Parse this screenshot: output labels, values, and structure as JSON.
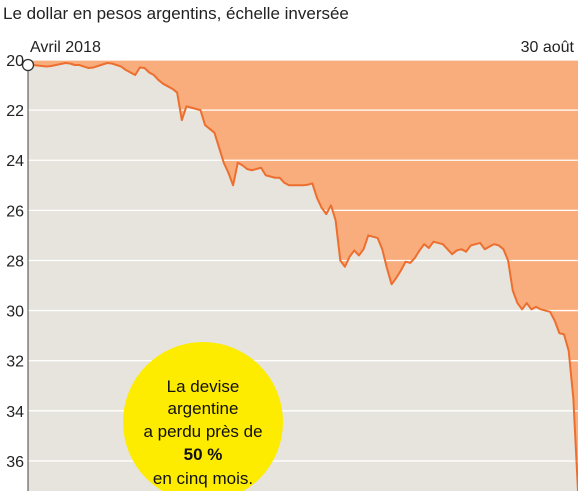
{
  "chart_data": {
    "type": "area",
    "title": "Le dollar en pesos argentins, échelle inversée",
    "y_inverted": true,
    "ylim": [
      20,
      37.2
    ],
    "y_ticks": [
      "20",
      "22",
      "24",
      "26",
      "28",
      "30",
      "32",
      "34",
      "36"
    ],
    "x_range_labels": {
      "start": "Avril 2018",
      "end": "30 août"
    },
    "grid": "horizontal",
    "series": [
      {
        "values": [
          20.2,
          20.2,
          20.22,
          20.24,
          20.26,
          20.24,
          20.2,
          20.16,
          20.12,
          20.14,
          20.2,
          20.2,
          20.26,
          20.32,
          20.3,
          20.24,
          20.18,
          20.12,
          20.14,
          20.2,
          20.26,
          20.4,
          20.5,
          20.6,
          20.3,
          20.32,
          20.5,
          20.6,
          20.8,
          20.95,
          21.05,
          21.15,
          21.3,
          22.4,
          21.85,
          21.9,
          21.95,
          22.0,
          22.6,
          22.75,
          22.9,
          23.5,
          24.1,
          24.5,
          25.0,
          24.1,
          24.2,
          24.35,
          24.4,
          24.35,
          24.3,
          24.6,
          24.65,
          24.7,
          24.7,
          24.9,
          25.0,
          25.0,
          25.0,
          25.0,
          24.98,
          24.92,
          25.5,
          25.9,
          26.15,
          25.8,
          26.4,
          28.0,
          28.25,
          27.85,
          27.6,
          27.8,
          27.55,
          27.0,
          27.05,
          27.1,
          27.55,
          28.3,
          28.95,
          28.7,
          28.4,
          28.05,
          28.1,
          27.9,
          27.6,
          27.35,
          27.5,
          27.25,
          27.3,
          27.35,
          27.55,
          27.75,
          27.6,
          27.55,
          27.65,
          27.4,
          27.35,
          27.3,
          27.55,
          27.45,
          27.35,
          27.4,
          27.55,
          28.0,
          29.2,
          29.7,
          29.95,
          29.7,
          29.95,
          29.85,
          29.95,
          30.0,
          30.05,
          30.4,
          30.9,
          30.95,
          31.6,
          33.5,
          37.2
        ]
      }
    ],
    "annotation": {
      "line1": "La devise",
      "line2": "argentine",
      "line3": "a perdu près de",
      "line4": "50 %",
      "line5": "en cinq mois."
    },
    "colors": {
      "above_fill": "#f9ad7c",
      "below_fill": "#e6e4dd",
      "line": "#ec6f30",
      "grid": "#ffffff",
      "callout": "#fdec00"
    }
  }
}
